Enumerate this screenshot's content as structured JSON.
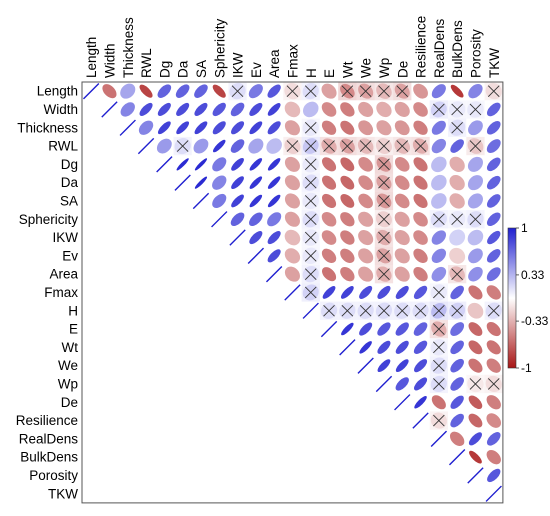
{
  "chart_data": {
    "type": "heatmap",
    "subtype": "correlation-ellipse-upper-triangle",
    "variables": [
      "Length",
      "Width",
      "Thickness",
      "RWL",
      "Dg",
      "Da",
      "SA",
      "Sphericity",
      "IKW",
      "Ev",
      "Area",
      "Fmax",
      "H",
      "E",
      "Wt",
      "We",
      "Wp",
      "De",
      "Resilience",
      "RealDens",
      "BulkDens",
      "Porosity",
      "TKW"
    ],
    "colorbar": {
      "range": [
        -1,
        1
      ],
      "tick_labels": [
        "1",
        "0.33",
        "-0.33",
        "-1"
      ],
      "tick_values": [
        1,
        0.33,
        -0.33,
        -1
      ],
      "colors": {
        "positive": "#1f1fd0",
        "neutral": "#ffffff",
        "negative": "#a81515"
      }
    },
    "insignificant_marker": "cross",
    "rows": [
      [
        "Length",
        [
          1.0,
          -0.6,
          0.4,
          -0.8,
          0.7,
          0.7,
          0.7,
          -0.8,
          0.15,
          0.6,
          0.75,
          -0.15,
          0.15,
          -0.4,
          -0.5,
          -0.4,
          -0.3,
          -0.4,
          -0.45,
          0.6,
          -0.85,
          0.55,
          -0.15
        ]
      ],
      [
        "Width",
        [
          1.0,
          0.55,
          0.8,
          0.8,
          0.8,
          0.8,
          0.75,
          0.7,
          0.8,
          0.85,
          -0.3,
          0.3,
          -0.5,
          -0.55,
          -0.4,
          -0.35,
          -0.4,
          -0.5,
          0.2,
          0.1,
          0.1,
          0.7
        ]
      ],
      [
        "Thickness",
        [
          1.0,
          0.55,
          0.85,
          0.85,
          0.85,
          0.8,
          0.8,
          0.85,
          0.8,
          -0.4,
          0.1,
          -0.55,
          -0.6,
          -0.45,
          -0.4,
          -0.45,
          -0.55,
          0.6,
          0.15,
          0.45,
          0.7
        ]
      ],
      [
        "RWL",
        [
          1.0,
          0.45,
          0.15,
          0.45,
          0.9,
          0.7,
          0.4,
          0.3,
          -0.2,
          0.25,
          -0.35,
          -0.4,
          -0.3,
          -0.2,
          -0.3,
          -0.35,
          0.55,
          0.7,
          -0.25,
          0.65
        ]
      ],
      [
        "Dg",
        [
          1.0,
          0.95,
          0.95,
          0.6,
          0.85,
          0.9,
          0.9,
          -0.4,
          0.1,
          -0.6,
          -0.65,
          -0.5,
          -0.45,
          -0.5,
          -0.6,
          0.3,
          -0.35,
          0.4,
          0.7
        ]
      ],
      [
        "Da",
        [
          1.0,
          0.95,
          0.55,
          0.85,
          0.9,
          0.9,
          -0.4,
          0.15,
          -0.6,
          -0.65,
          -0.5,
          -0.4,
          -0.5,
          -0.6,
          0.3,
          -0.35,
          0.4,
          0.7
        ]
      ],
      [
        "SA",
        [
          1.0,
          0.6,
          0.85,
          0.9,
          0.9,
          -0.4,
          0.1,
          -0.6,
          -0.65,
          -0.5,
          -0.45,
          -0.5,
          -0.6,
          0.3,
          -0.35,
          0.4,
          0.7
        ]
      ],
      [
        "Sphericity",
        [
          1.0,
          0.7,
          0.7,
          0.6,
          -0.4,
          0.15,
          -0.5,
          -0.55,
          -0.4,
          -0.2,
          -0.4,
          -0.5,
          0.15,
          0.1,
          0.15,
          0.7
        ]
      ],
      [
        "IKW",
        [
          1.0,
          0.8,
          0.8,
          -0.3,
          0.1,
          -0.5,
          -0.55,
          -0.4,
          -0.35,
          -0.4,
          -0.5,
          0.55,
          0.2,
          0.3,
          0.75
        ]
      ],
      [
        "Ev",
        [
          1.0,
          0.8,
          -0.35,
          0.1,
          -0.55,
          -0.55,
          -0.4,
          -0.4,
          -0.4,
          -0.55,
          0.55,
          -0.2,
          0.45,
          0.7
        ]
      ],
      [
        "Area",
        [
          1.0,
          -0.4,
          0.15,
          -0.6,
          -0.55,
          -0.4,
          -0.35,
          -0.4,
          -0.55,
          0.5,
          -0.3,
          0.5,
          0.65
        ]
      ],
      [
        "Fmax",
        [
          1.0,
          0.2,
          0.85,
          0.85,
          0.8,
          0.8,
          0.8,
          0.75,
          0.1,
          0.7,
          -0.6,
          -0.55
        ]
      ],
      [
        "H",
        [
          1.0,
          0.15,
          0.15,
          0.15,
          0.15,
          0.15,
          0.15,
          0.3,
          0.2,
          -0.25,
          0.15
        ]
      ],
      [
        "E",
        [
          1.0,
          0.9,
          0.8,
          0.75,
          0.75,
          0.7,
          -0.35,
          0.65,
          -0.65,
          -0.6
        ]
      ],
      [
        "Wt",
        [
          1.0,
          0.9,
          0.8,
          0.8,
          0.75,
          0.1,
          0.7,
          -0.65,
          -0.6
        ]
      ],
      [
        "We",
        [
          1.0,
          0.85,
          0.85,
          0.8,
          0.15,
          0.7,
          -0.6,
          -0.55
        ]
      ],
      [
        "Wp",
        [
          1.0,
          0.75,
          0.8,
          0.15,
          0.7,
          -0.1,
          -0.15
        ]
      ],
      [
        "De",
        [
          1.0,
          0.9,
          -0.6,
          0.75,
          -0.7,
          -0.55
        ]
      ],
      [
        "Resilience",
        [
          1.0,
          -0.15,
          0.7,
          -0.65,
          -0.5
        ]
      ],
      [
        "RealDens",
        [
          1.0,
          -0.55,
          0.8,
          0.7
        ]
      ],
      [
        "BulkDens",
        [
          1.0,
          -0.85,
          -0.55
        ]
      ],
      [
        "Porosity",
        [
          1.0,
          0.75
        ]
      ],
      [
        "TKW",
        [
          1.0
        ]
      ]
    ],
    "crossed_cells": [
      [
        "Length",
        "IKW"
      ],
      [
        "Length",
        "Fmax"
      ],
      [
        "Length",
        "H"
      ],
      [
        "Length",
        "Wt"
      ],
      [
        "Length",
        "We"
      ],
      [
        "Length",
        "Wp"
      ],
      [
        "Length",
        "De"
      ],
      [
        "Length",
        "TKW"
      ],
      [
        "Width",
        "RealDens"
      ],
      [
        "Width",
        "BulkDens"
      ],
      [
        "Width",
        "Porosity"
      ],
      [
        "Thickness",
        "H"
      ],
      [
        "Thickness",
        "BulkDens"
      ],
      [
        "RWL",
        "Da"
      ],
      [
        "RWL",
        "Fmax"
      ],
      [
        "RWL",
        "H"
      ],
      [
        "RWL",
        "E"
      ],
      [
        "RWL",
        "Wt"
      ],
      [
        "RWL",
        "We"
      ],
      [
        "RWL",
        "Wp"
      ],
      [
        "RWL",
        "De"
      ],
      [
        "RWL",
        "Resilience"
      ],
      [
        "RWL",
        "Porosity"
      ],
      [
        "Dg",
        "H"
      ],
      [
        "Dg",
        "Wp"
      ],
      [
        "Da",
        "H"
      ],
      [
        "Da",
        "Wp"
      ],
      [
        "SA",
        "H"
      ],
      [
        "SA",
        "Wp"
      ],
      [
        "Sphericity",
        "H"
      ],
      [
        "Sphericity",
        "Wp"
      ],
      [
        "Sphericity",
        "RealDens"
      ],
      [
        "Sphericity",
        "BulkDens"
      ],
      [
        "Sphericity",
        "Porosity"
      ],
      [
        "IKW",
        "H"
      ],
      [
        "IKW",
        "Wp"
      ],
      [
        "Ev",
        "H"
      ],
      [
        "Ev",
        "Wp"
      ],
      [
        "Area",
        "H"
      ],
      [
        "Area",
        "Wp"
      ],
      [
        "Area",
        "BulkDens"
      ],
      [
        "Fmax",
        "H"
      ],
      [
        "Fmax",
        "RealDens"
      ],
      [
        "H",
        "E"
      ],
      [
        "H",
        "Wt"
      ],
      [
        "H",
        "We"
      ],
      [
        "H",
        "Wp"
      ],
      [
        "H",
        "De"
      ],
      [
        "H",
        "Resilience"
      ],
      [
        "H",
        "RealDens"
      ],
      [
        "H",
        "BulkDens"
      ],
      [
        "H",
        "TKW"
      ],
      [
        "E",
        "RealDens"
      ],
      [
        "Wt",
        "RealDens"
      ],
      [
        "We",
        "RealDens"
      ],
      [
        "Wp",
        "RealDens"
      ],
      [
        "Wp",
        "Porosity"
      ],
      [
        "Wp",
        "TKW"
      ],
      [
        "Resilience",
        "RealDens"
      ]
    ]
  }
}
